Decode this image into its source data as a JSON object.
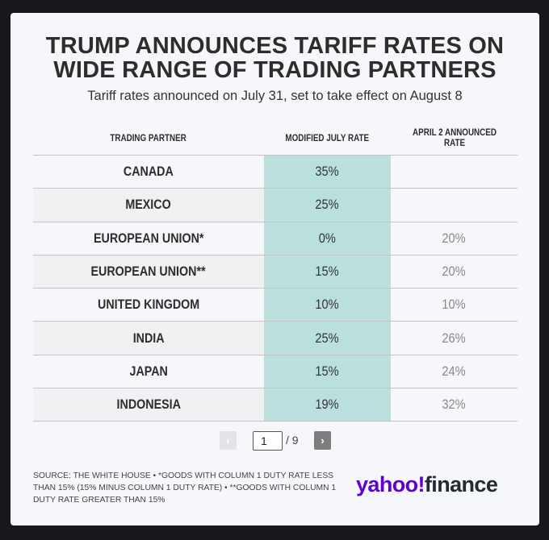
{
  "header": {
    "title_line1": "TRUMP ANNOUNCES TARIFF RATES ON",
    "title_line2": "WIDE RANGE OF TRADING PARTNERS",
    "subtitle": "Tariff rates announced on July 31, set to take effect on August 8"
  },
  "table": {
    "columns": [
      "TRADING PARTNER",
      "MODIFIED JULY RATE",
      "APRIL 2 ANNOUNCED RATE"
    ],
    "rows": [
      {
        "partner": "CANADA",
        "july": "35%",
        "april": ""
      },
      {
        "partner": "MEXICO",
        "july": "25%",
        "april": ""
      },
      {
        "partner": "EUROPEAN UNION*",
        "july": "0%",
        "april": "20%"
      },
      {
        "partner": "EUROPEAN UNION**",
        "july": "15%",
        "april": "20%"
      },
      {
        "partner": "UNITED KINGDOM",
        "july": "10%",
        "april": "10%"
      },
      {
        "partner": "INDIA",
        "july": "25%",
        "april": "26%"
      },
      {
        "partner": "JAPAN",
        "july": "15%",
        "april": "24%"
      },
      {
        "partner": "INDONESIA",
        "july": "19%",
        "april": "32%"
      }
    ],
    "highlight_color": "#b9e0dc"
  },
  "pagination": {
    "prev_icon": "chevron-left-icon",
    "prev_glyph": "‹",
    "current_page": "1",
    "total": "/ 9",
    "next_icon": "chevron-right-icon",
    "next_glyph": "›"
  },
  "footer": {
    "source": "SOURCE: THE WHITE HOUSE • *GOODS WITH COLUMN 1 DUTY RATE LESS THAN 15% (15% MINUS COLUMN 1 DUTY RATE) • **GOODS WITH COLUMN 1 DUTY RATE GREATER THAN 15%",
    "logo_part1": "yahoo!",
    "logo_part2": "finance",
    "logo_color": "#6001d2"
  }
}
